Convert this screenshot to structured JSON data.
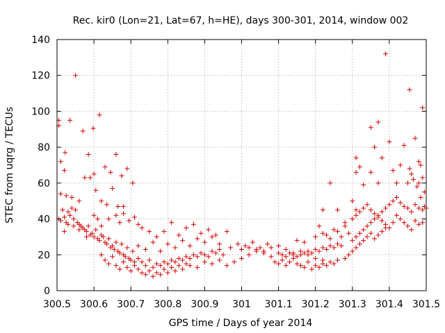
{
  "chart_data": {
    "type": "scatter",
    "title": "Rec. kir0 (Lon=21, Lat=67, h=HE), days 300-301, 2014, window 002",
    "xlabel": "GPS time / Days of year 2014",
    "ylabel": "STEC from uqrg / TECUs",
    "xlim": [
      300.5,
      301.5
    ],
    "ylim": [
      0,
      140
    ],
    "xticks": [
      300.5,
      300.6,
      300.7,
      300.8,
      300.9,
      301,
      301.1,
      301.2,
      301.3,
      301.4,
      301.5
    ],
    "xtick_labels": [
      "300.5",
      "300.6",
      "300.7",
      "300.8",
      "300.9",
      "301",
      "301.1",
      "301.2",
      "301.3",
      "301.4",
      "301.5"
    ],
    "yticks": [
      0,
      20,
      40,
      60,
      80,
      100,
      120,
      140
    ],
    "ytick_labels": [
      "0",
      "20",
      "40",
      "60",
      "80",
      "100",
      "120",
      "140"
    ],
    "grid": true,
    "marker": "+",
    "marker_color": "#d00000",
    "points": [
      [
        300.505,
        95
      ],
      [
        300.505,
        92
      ],
      [
        300.51,
        72
      ],
      [
        300.52,
        67
      ],
      [
        300.522,
        77
      ],
      [
        300.535,
        95
      ],
      [
        300.55,
        120
      ],
      [
        300.57,
        89
      ],
      [
        300.585,
        76
      ],
      [
        300.598,
        90.5
      ],
      [
        300.6,
        65
      ],
      [
        300.615,
        98
      ],
      [
        300.63,
        69
      ],
      [
        300.645,
        66
      ],
      [
        300.66,
        76
      ],
      [
        300.675,
        64
      ],
      [
        300.69,
        68
      ],
      [
        300.705,
        60
      ],
      [
        300.51,
        54
      ],
      [
        300.525,
        53
      ],
      [
        300.54,
        52
      ],
      [
        300.56,
        50
      ],
      [
        300.575,
        63
      ],
      [
        300.59,
        63
      ],
      [
        300.605,
        56
      ],
      [
        300.62,
        50
      ],
      [
        300.635,
        48
      ],
      [
        300.65,
        57
      ],
      [
        300.665,
        47
      ],
      [
        300.68,
        47
      ],
      [
        300.505,
        40
      ],
      [
        300.51,
        39
      ],
      [
        300.515,
        45
      ],
      [
        300.52,
        41
      ],
      [
        300.525,
        38
      ],
      [
        300.53,
        44
      ],
      [
        300.535,
        42
      ],
      [
        300.54,
        46
      ],
      [
        300.545,
        36
      ],
      [
        300.55,
        45
      ],
      [
        300.555,
        38
      ],
      [
        300.56,
        37
      ],
      [
        300.565,
        36
      ],
      [
        300.57,
        35
      ],
      [
        300.575,
        34
      ],
      [
        300.58,
        33
      ],
      [
        300.585,
        36
      ],
      [
        300.59,
        31
      ],
      [
        300.595,
        32
      ],
      [
        300.6,
        30
      ],
      [
        300.605,
        34
      ],
      [
        300.61,
        29
      ],
      [
        300.615,
        28
      ],
      [
        300.62,
        31
      ],
      [
        300.625,
        30
      ],
      [
        300.63,
        27
      ],
      [
        300.635,
        26
      ],
      [
        300.64,
        29
      ],
      [
        300.645,
        24
      ],
      [
        300.65,
        25
      ],
      [
        300.655,
        23
      ],
      [
        300.66,
        27
      ],
      [
        300.665,
        22
      ],
      [
        300.67,
        21
      ],
      [
        300.675,
        26
      ],
      [
        300.68,
        20
      ],
      [
        300.685,
        19
      ],
      [
        300.69,
        24
      ],
      [
        300.695,
        18
      ],
      [
        300.7,
        17
      ],
      [
        300.705,
        22
      ],
      [
        300.71,
        16
      ],
      [
        300.52,
        33
      ],
      [
        300.53,
        37
      ],
      [
        300.545,
        40
      ],
      [
        300.56,
        34
      ],
      [
        300.58,
        30
      ],
      [
        300.6,
        42
      ],
      [
        300.61,
        40
      ],
      [
        300.62,
        36
      ],
      [
        300.64,
        40
      ],
      [
        300.66,
        42
      ],
      [
        300.67,
        38
      ],
      [
        300.68,
        43
      ],
      [
        300.695,
        39
      ],
      [
        300.71,
        41
      ],
      [
        300.72,
        37
      ],
      [
        300.73,
        35
      ],
      [
        300.62,
        20
      ],
      [
        300.63,
        17
      ],
      [
        300.64,
        15
      ],
      [
        300.65,
        19
      ],
      [
        300.66,
        14
      ],
      [
        300.67,
        12
      ],
      [
        300.68,
        16
      ],
      [
        300.69,
        13
      ],
      [
        300.7,
        11
      ],
      [
        300.71,
        14
      ],
      [
        300.72,
        12
      ],
      [
        300.73,
        10
      ],
      [
        300.74,
        9
      ],
      [
        300.75,
        11
      ],
      [
        300.76,
        8
      ],
      [
        300.77,
        10
      ],
      [
        300.78,
        9
      ],
      [
        300.79,
        12
      ],
      [
        300.8,
        10
      ],
      [
        300.81,
        13
      ],
      [
        300.82,
        11
      ],
      [
        300.83,
        14
      ],
      [
        300.84,
        12
      ],
      [
        300.85,
        15
      ],
      [
        300.72,
        18
      ],
      [
        300.73,
        16
      ],
      [
        300.74,
        14
      ],
      [
        300.75,
        17
      ],
      [
        300.76,
        13
      ],
      [
        300.77,
        15
      ],
      [
        300.78,
        14
      ],
      [
        300.79,
        16
      ],
      [
        300.8,
        15
      ],
      [
        300.81,
        17
      ],
      [
        300.82,
        16
      ],
      [
        300.83,
        18
      ],
      [
        300.84,
        17
      ],
      [
        300.85,
        19
      ],
      [
        300.86,
        18
      ],
      [
        300.87,
        20
      ],
      [
        300.88,
        19
      ],
      [
        300.89,
        21
      ],
      [
        300.72,
        25
      ],
      [
        300.74,
        23
      ],
      [
        300.76,
        27
      ],
      [
        300.78,
        22
      ],
      [
        300.8,
        26
      ],
      [
        300.82,
        24
      ],
      [
        300.84,
        28
      ],
      [
        300.86,
        25
      ],
      [
        300.88,
        29
      ],
      [
        300.9,
        27
      ],
      [
        300.92,
        30
      ],
      [
        300.94,
        26
      ],
      [
        300.75,
        33
      ],
      [
        300.77,
        30
      ],
      [
        300.79,
        33
      ],
      [
        300.81,
        38
      ],
      [
        300.83,
        31
      ],
      [
        300.85,
        35
      ],
      [
        300.87,
        37
      ],
      [
        300.89,
        32
      ],
      [
        300.91,
        34
      ],
      [
        300.93,
        31
      ],
      [
        300.96,
        33
      ],
      [
        300.86,
        14
      ],
      [
        300.88,
        13
      ],
      [
        300.9,
        16
      ],
      [
        300.92,
        15
      ],
      [
        300.94,
        17
      ],
      [
        300.96,
        14
      ],
      [
        300.98,
        16
      ],
      [
        301.0,
        18
      ],
      [
        301.02,
        20
      ],
      [
        301.04,
        22
      ],
      [
        301.06,
        21
      ],
      [
        301.08,
        19
      ],
      [
        300.9,
        20
      ],
      [
        300.91,
        19
      ],
      [
        300.92,
        22
      ],
      [
        300.93,
        21
      ],
      [
        300.94,
        23
      ],
      [
        300.95,
        20
      ],
      [
        300.97,
        24
      ],
      [
        300.99,
        26
      ],
      [
        301.01,
        25
      ],
      [
        301.03,
        27
      ],
      [
        301.05,
        24
      ],
      [
        301.07,
        26
      ],
      [
        301.0,
        23
      ],
      [
        301.02,
        24
      ],
      [
        301.04,
        23
      ],
      [
        301.06,
        22
      ],
      [
        301.08,
        24
      ],
      [
        301.1,
        25
      ],
      [
        301.12,
        23
      ],
      [
        301.14,
        21
      ],
      [
        301.16,
        22
      ],
      [
        301.18,
        20
      ],
      [
        301.2,
        18
      ],
      [
        301.22,
        17
      ],
      [
        301.09,
        16
      ],
      [
        301.1,
        15
      ],
      [
        301.11,
        17
      ],
      [
        301.12,
        14
      ],
      [
        301.13,
        16
      ],
      [
        301.14,
        18
      ],
      [
        301.15,
        15
      ],
      [
        301.16,
        14
      ],
      [
        301.17,
        13
      ],
      [
        301.18,
        16
      ],
      [
        301.19,
        12
      ],
      [
        301.2,
        14
      ],
      [
        301.21,
        13
      ],
      [
        301.22,
        15
      ],
      [
        301.23,
        14
      ],
      [
        301.24,
        16
      ],
      [
        301.25,
        15
      ],
      [
        301.26,
        17
      ],
      [
        301.1,
        21
      ],
      [
        301.11,
        20
      ],
      [
        301.12,
        19
      ],
      [
        301.13,
        21
      ],
      [
        301.14,
        20
      ],
      [
        301.15,
        19
      ],
      [
        301.16,
        20
      ],
      [
        301.17,
        21
      ],
      [
        301.18,
        22
      ],
      [
        301.19,
        21
      ],
      [
        301.2,
        23
      ],
      [
        301.21,
        22
      ],
      [
        301.22,
        24
      ],
      [
        301.23,
        23
      ],
      [
        301.24,
        25
      ],
      [
        301.25,
        24
      ],
      [
        301.26,
        26
      ],
      [
        301.27,
        25
      ],
      [
        301.15,
        28
      ],
      [
        301.17,
        27
      ],
      [
        301.2,
        30
      ],
      [
        301.21,
        36
      ],
      [
        301.22,
        32
      ],
      [
        301.23,
        31
      ],
      [
        301.24,
        29
      ],
      [
        301.25,
        34
      ],
      [
        301.26,
        33
      ],
      [
        301.27,
        30
      ],
      [
        301.28,
        36
      ],
      [
        301.29,
        32
      ],
      [
        301.22,
        45
      ],
      [
        301.24,
        60
      ],
      [
        301.26,
        45
      ],
      [
        301.28,
        38
      ],
      [
        301.3,
        50
      ],
      [
        301.31,
        45
      ],
      [
        301.28,
        18
      ],
      [
        301.29,
        20
      ],
      [
        301.3,
        22
      ],
      [
        301.31,
        24
      ],
      [
        301.32,
        26
      ],
      [
        301.33,
        28
      ],
      [
        301.34,
        30
      ],
      [
        301.35,
        32
      ],
      [
        301.36,
        29
      ],
      [
        301.37,
        31
      ],
      [
        301.38,
        33
      ],
      [
        301.39,
        35
      ],
      [
        301.3,
        28
      ],
      [
        301.31,
        30
      ],
      [
        301.32,
        32
      ],
      [
        301.33,
        34
      ],
      [
        301.34,
        36
      ],
      [
        301.35,
        38
      ],
      [
        301.36,
        40
      ],
      [
        301.37,
        42
      ],
      [
        301.38,
        44
      ],
      [
        301.39,
        46
      ],
      [
        301.4,
        48
      ],
      [
        301.41,
        50
      ],
      [
        301.3,
        40
      ],
      [
        301.31,
        42
      ],
      [
        301.32,
        44
      ],
      [
        301.33,
        46
      ],
      [
        301.34,
        48
      ],
      [
        301.35,
        45
      ],
      [
        301.36,
        43
      ],
      [
        301.37,
        41
      ],
      [
        301.38,
        39
      ],
      [
        301.39,
        37
      ],
      [
        301.4,
        35
      ],
      [
        301.41,
        38
      ],
      [
        301.31,
        66
      ],
      [
        301.31,
        74
      ],
      [
        301.32,
        69
      ],
      [
        301.33,
        59
      ],
      [
        301.35,
        66
      ],
      [
        301.35,
        91
      ],
      [
        301.36,
        80
      ],
      [
        301.37,
        60
      ],
      [
        301.37,
        94
      ],
      [
        301.38,
        74
      ],
      [
        301.39,
        132
      ],
      [
        301.4,
        83
      ],
      [
        301.41,
        67
      ],
      [
        301.42,
        60
      ],
      [
        301.43,
        70
      ],
      [
        301.44,
        81
      ],
      [
        301.45,
        60
      ],
      [
        301.455,
        112
      ],
      [
        301.47,
        85
      ],
      [
        301.48,
        72
      ],
      [
        301.485,
        70
      ],
      [
        301.49,
        102
      ],
      [
        301.49,
        63
      ],
      [
        301.495,
        55
      ],
      [
        301.42,
        52
      ],
      [
        301.43,
        49
      ],
      [
        301.44,
        47
      ],
      [
        301.45,
        46
      ],
      [
        301.46,
        44
      ],
      [
        301.47,
        48
      ],
      [
        301.48,
        46
      ],
      [
        301.49,
        45
      ],
      [
        301.42,
        42
      ],
      [
        301.43,
        40
      ],
      [
        301.44,
        38
      ],
      [
        301.45,
        36
      ],
      [
        301.46,
        34
      ],
      [
        301.47,
        39
      ],
      [
        301.48,
        37
      ],
      [
        301.49,
        38
      ],
      [
        301.455,
        68
      ],
      [
        301.46,
        65
      ],
      [
        301.465,
        62
      ],
      [
        301.475,
        58
      ],
      [
        301.48,
        60
      ],
      [
        301.485,
        52
      ],
      [
        301.495,
        47
      ],
      [
        301.5,
        46
      ]
    ]
  }
}
